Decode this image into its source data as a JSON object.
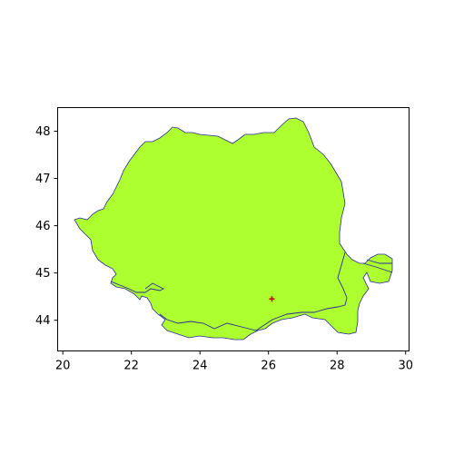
{
  "map": {
    "region_fill": "#adff2f",
    "outline_color": "#2b2b9b",
    "marker_color": "#cc0000",
    "marker": {
      "lon": 26.1,
      "lat": 44.45
    },
    "x_ticks": [
      {
        "value": 20,
        "label": "20"
      },
      {
        "value": 22,
        "label": "22"
      },
      {
        "value": 24,
        "label": "24"
      },
      {
        "value": 26,
        "label": "26"
      },
      {
        "value": 28,
        "label": "28"
      },
      {
        "value": 30,
        "label": "30"
      }
    ],
    "y_ticks": [
      {
        "value": 44,
        "label": "44"
      },
      {
        "value": 45,
        "label": "45"
      },
      {
        "value": 46,
        "label": "46"
      },
      {
        "value": 47,
        "label": "47"
      },
      {
        "value": 48,
        "label": "48"
      }
    ],
    "xlim": [
      19.85,
      30.1
    ],
    "ylim": [
      43.35,
      48.5
    ]
  }
}
